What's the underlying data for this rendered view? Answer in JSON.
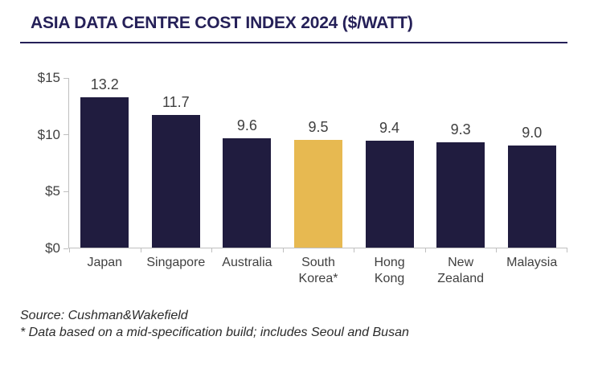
{
  "title": "ASIA DATA CENTRE COST INDEX 2024 ($/WATT)",
  "colors": {
    "bar_navy": "#201C3F",
    "bar_gold": "#E7B951",
    "title_navy": "#252058",
    "label_gray": "#404040",
    "axis_gray": "#BFBFBF"
  },
  "chart_data": {
    "type": "bar",
    "title": "ASIA DATA CENTRE COST INDEX 2024 ($/WATT)",
    "categories": [
      "Japan",
      "Singapore",
      "Australia",
      "South\nKorea*",
      "Hong\nKong",
      "New\nZealand",
      "Malaysia"
    ],
    "values": [
      13.2,
      11.7,
      9.6,
      9.5,
      9.4,
      9.3,
      9.0
    ],
    "value_labels": [
      "13.2",
      "11.7",
      "9.6",
      "9.5",
      "9.4",
      "9.3",
      "9.0"
    ],
    "highlight_index": 3,
    "xlabel": "",
    "ylabel": "",
    "ylim": [
      0,
      15
    ],
    "yticks": [
      "$15",
      "$10",
      "$5",
      "$0"
    ],
    "ytick_values": [
      15,
      10,
      5,
      0
    ],
    "grid": false,
    "legend_position": "none"
  },
  "footer": {
    "source": "Source: Cushman&Wakefield",
    "note": "* Data based on a mid-specification build; includes Seoul and Busan"
  }
}
